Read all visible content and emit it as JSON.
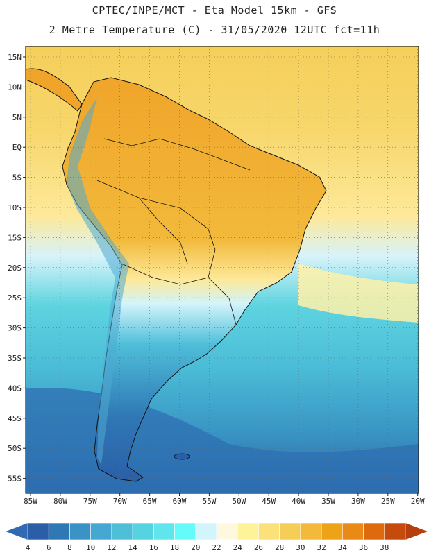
{
  "header": {
    "title_line1": "CPTEC/INPE/MCT -  Eta Model 15km - GFS",
    "title_line2": "2 Metre Temperature (C) - 31/05/2020 12UTC fct=11h"
  },
  "map": {
    "lat_ticks": [
      "15N",
      "10N",
      "5N",
      "EQ",
      "5S",
      "10S",
      "15S",
      "20S",
      "25S",
      "30S",
      "35S",
      "40S",
      "45S",
      "50S",
      "55S"
    ],
    "lon_ticks": [
      "85W",
      "80W",
      "75W",
      "70W",
      "65W",
      "60W",
      "55W",
      "50W",
      "45W",
      "40W",
      "35W",
      "30W",
      "25W",
      "20W"
    ]
  },
  "colorbar": {
    "labels": [
      "4",
      "6",
      "8",
      "10",
      "12",
      "14",
      "16",
      "18",
      "20",
      "22",
      "24",
      "26",
      "28",
      "30",
      "32",
      "34",
      "36",
      "38"
    ],
    "colors": [
      "#2a5fa8",
      "#2f78b5",
      "#3b92c4",
      "#45a8d2",
      "#4fbfd9",
      "#55d3e0",
      "#5ee6ec",
      "#66fbfb",
      "#d2f4fb",
      "#fff8e1",
      "#fff39a",
      "#fce07a",
      "#f6cd57",
      "#f2b93a",
      "#eea316",
      "#e98a17",
      "#dd6a0f",
      "#c54a0c"
    ],
    "left_arrow_color": "#2f6ab3",
    "right_arrow_color": "#b5400e"
  }
}
